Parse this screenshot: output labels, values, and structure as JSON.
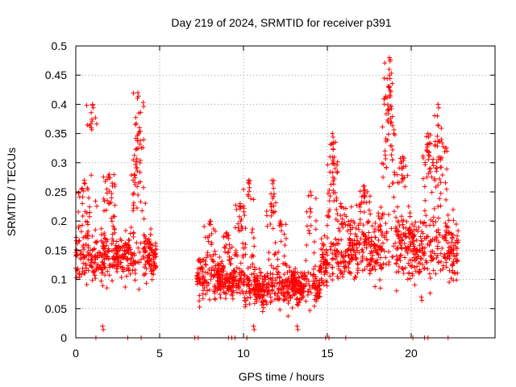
{
  "chart_data": {
    "type": "scatter",
    "title": "Day 219 of 2024, SRMTID for receiver p391",
    "xlabel": "GPS time / hours",
    "ylabel": "SRMTID / TECUs",
    "xlim": [
      0,
      25
    ],
    "ylim": [
      0,
      0.5
    ],
    "grid": true,
    "marker": "+",
    "series_color": "#ff0000",
    "x_ticks": [
      {
        "value": 0,
        "label": "0"
      },
      {
        "value": 5,
        "label": "5"
      },
      {
        "value": 10,
        "label": "10"
      },
      {
        "value": 15,
        "label": "15"
      },
      {
        "value": 20,
        "label": "20"
      }
    ],
    "y_ticks": [
      {
        "value": 0,
        "label": "0"
      },
      {
        "value": 0.05,
        "label": "0.05"
      },
      {
        "value": 0.1,
        "label": "0.1"
      },
      {
        "value": 0.15,
        "label": "0.15"
      },
      {
        "value": 0.2,
        "label": "0.2"
      },
      {
        "value": 0.25,
        "label": "0.25"
      },
      {
        "value": 0.3,
        "label": "0.3"
      },
      {
        "value": 0.35,
        "label": "0.35"
      },
      {
        "value": 0.4,
        "label": "0.4"
      },
      {
        "value": 0.45,
        "label": "0.45"
      },
      {
        "value": 0.5,
        "label": "0.5"
      }
    ],
    "zero_markers_x": [
      1.2,
      3.1,
      3.9,
      7.1,
      7.3,
      9.1,
      9.3,
      9.5,
      10.2,
      14.9,
      15.1,
      16.1,
      20.1,
      20.8,
      21.0,
      22.2
    ],
    "series": [
      {
        "name": "SRMTID",
        "segments": [
          {
            "x_start": 0.0,
            "x_end": 4.8,
            "base": 0.14,
            "spread": 0.05,
            "peaks": [
              {
                "x": 1.0,
                "y": 0.4
              },
              {
                "x": 3.5,
                "y": 0.28
              },
              {
                "x": 3.7,
                "y": 0.42
              },
              {
                "x": 3.8,
                "y": 0.36
              },
              {
                "x": 0.5,
                "y": 0.27
              },
              {
                "x": 2.0,
                "y": 0.28
              },
              {
                "x": 1.6,
                "y": 0.02
              }
            ]
          },
          {
            "x_start": 7.2,
            "x_end": 10.0,
            "base": 0.1,
            "spread": 0.04,
            "peaks": [
              {
                "x": 8.0,
                "y": 0.2
              },
              {
                "x": 9.0,
                "y": 0.18
              },
              {
                "x": 9.8,
                "y": 0.23
              }
            ]
          },
          {
            "x_start": 10.0,
            "x_end": 14.6,
            "base": 0.09,
            "spread": 0.04,
            "peaks": [
              {
                "x": 10.3,
                "y": 0.27
              },
              {
                "x": 11.7,
                "y": 0.27
              },
              {
                "x": 12.2,
                "y": 0.2
              },
              {
                "x": 14.0,
                "y": 0.25
              },
              {
                "x": 10.6,
                "y": 0.02
              },
              {
                "x": 13.2,
                "y": 0.02
              }
            ]
          },
          {
            "x_start": 14.6,
            "x_end": 16.2,
            "base": 0.13,
            "spread": 0.05,
            "peaks": [
              {
                "x": 15.3,
                "y": 0.35
              },
              {
                "x": 15.3,
                "y": 0.31
              },
              {
                "x": 15.8,
                "y": 0.23
              }
            ]
          },
          {
            "x_start": 16.2,
            "x_end": 22.8,
            "base": 0.16,
            "spread": 0.07,
            "peaks": [
              {
                "x": 18.7,
                "y": 0.48
              },
              {
                "x": 18.7,
                "y": 0.45
              },
              {
                "x": 18.7,
                "y": 0.43
              },
              {
                "x": 18.6,
                "y": 0.39
              },
              {
                "x": 19.5,
                "y": 0.31
              },
              {
                "x": 21.0,
                "y": 0.35
              },
              {
                "x": 21.6,
                "y": 0.4
              },
              {
                "x": 21.8,
                "y": 0.34
              },
              {
                "x": 17.2,
                "y": 0.26
              },
              {
                "x": 20.6,
                "y": 0.07
              }
            ]
          }
        ]
      }
    ]
  }
}
